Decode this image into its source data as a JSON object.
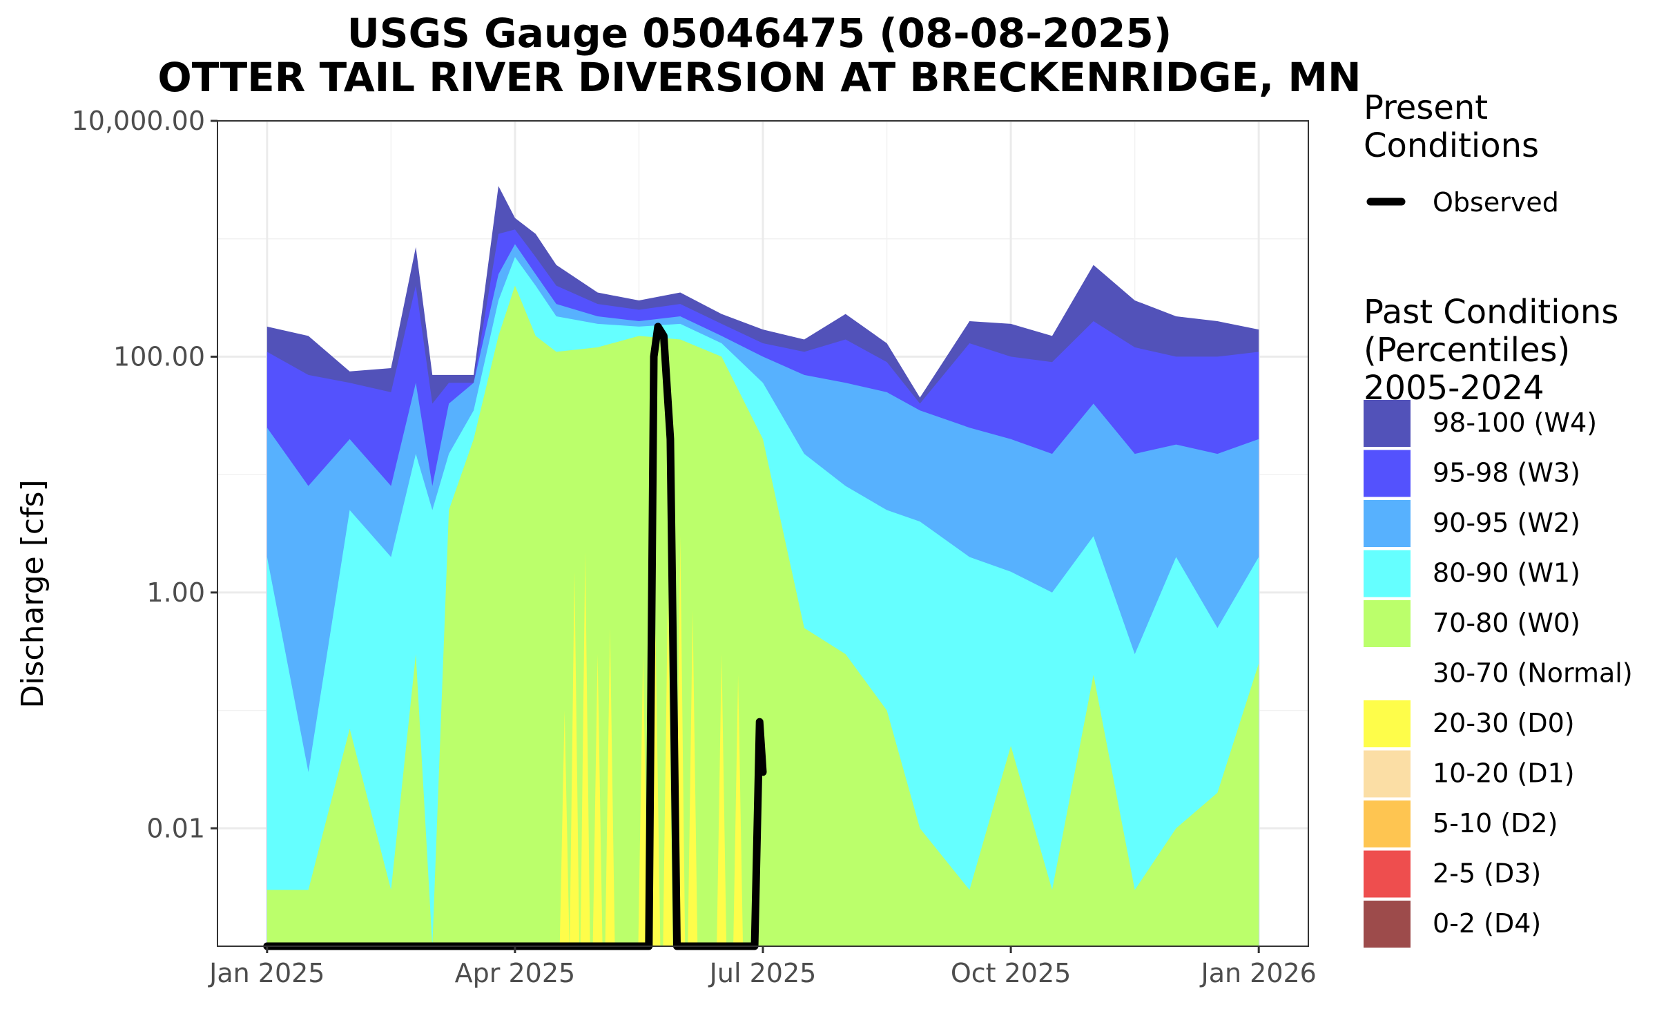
{
  "chart_data": {
    "type": "area",
    "title": "USGS Gauge 05046475 (08-08-2025)",
    "subtitle": "OTTER TAIL RIVER DIVERSION AT BRECKENRIDGE, MN",
    "xlabel": "",
    "ylabel": "Discharge [cfs]",
    "y_scale": "log10",
    "y_floor": 0.001,
    "ylim": [
      0.001,
      10000
    ],
    "y_ticks": [
      {
        "value": 0.01,
        "label": "0.01"
      },
      {
        "value": 1,
        "label": "1.00"
      },
      {
        "value": 100,
        "label": "100.00"
      },
      {
        "value": 10000,
        "label": "10,000.00"
      }
    ],
    "x_ticks": [
      {
        "month": 0,
        "label": "Jan 2025"
      },
      {
        "month": 3,
        "label": "Apr 2025"
      },
      {
        "month": 6,
        "label": "Jul 2025"
      },
      {
        "month": 9,
        "label": "Oct 2025"
      },
      {
        "month": 12,
        "label": "Jan 2026"
      }
    ],
    "x_range_months": [
      -0.6,
      12.6
    ],
    "grid": true,
    "legend_position": "right",
    "percentile_bands": {
      "x_months": [
        0,
        0.5,
        1,
        1.5,
        1.8,
        2,
        2.2,
        2.5,
        2.8,
        3,
        3.25,
        3.5,
        4,
        4.5,
        5,
        5.5,
        6,
        6.5,
        7,
        7.5,
        7.9,
        8.5,
        9,
        9.5,
        10,
        10.5,
        11,
        11.5,
        12
      ],
      "p98_100_top": [
        180,
        150,
        75,
        80,
        850,
        70,
        70,
        70,
        2800,
        1500,
        1100,
        600,
        350,
        300,
        350,
        230,
        170,
        140,
        230,
        130,
        45,
        200,
        190,
        150,
        600,
        300,
        220,
        200,
        170
      ],
      "p95_98_top": [
        110,
        70,
        60,
        50,
        400,
        40,
        60,
        60,
        1100,
        1200,
        700,
        400,
        280,
        250,
        280,
        190,
        130,
        110,
        140,
        90,
        40,
        130,
        100,
        90,
        200,
        120,
        100,
        100,
        110
      ],
      "p90_95_top": [
        25,
        8,
        20,
        8,
        60,
        8,
        40,
        60,
        500,
        900,
        500,
        280,
        220,
        200,
        220,
        150,
        100,
        70,
        60,
        50,
        35,
        25,
        20,
        15,
        40,
        15,
        18,
        15,
        20
      ],
      "p80_90_top": [
        2,
        0.03,
        5,
        2,
        15,
        5,
        15,
        35,
        300,
        700,
        400,
        220,
        190,
        180,
        190,
        130,
        60,
        15,
        8,
        5,
        4,
        2,
        1.5,
        1,
        3,
        0.3,
        2,
        0.5,
        2
      ],
      "p70_80_top": [
        0.003,
        0.003,
        0.07,
        0.003,
        0.3,
        0.001,
        5,
        20,
        150,
        400,
        150,
        110,
        120,
        150,
        140,
        100,
        20,
        0.5,
        0.3,
        0.1,
        0.01,
        0.003,
        0.05,
        0.003,
        0.2,
        0.003,
        0.01,
        0.02,
        0.25
      ]
    },
    "d0_bars": {
      "x_months": [
        3.6,
        3.72,
        3.85,
        4.0,
        4.15,
        4.55,
        4.7,
        4.85,
        5.0,
        5.15,
        5.5,
        5.7
      ],
      "values": [
        0.1,
        1.5,
        2.2,
        0.3,
        0.5,
        0.3,
        0.5,
        1,
        3,
        0.7,
        0.3,
        0.2
      ]
    },
    "series": [
      {
        "name": "Observed",
        "color": "#000000",
        "x_months": [
          0,
          4.62,
          4.68,
          4.73,
          4.8,
          4.88,
          4.96,
          5.05,
          5.2,
          5.9,
          5.96,
          6.0
        ],
        "values": [
          0.001,
          0.001,
          100,
          180,
          150,
          20,
          0.001,
          0.001,
          0.001,
          0.001,
          0.08,
          0.03
        ]
      }
    ],
    "legend": {
      "present_title": "Present\nConditions",
      "present_items": [
        {
          "label": "Observed",
          "color": "#000000"
        }
      ],
      "past_title": "Past Conditions\n(Percentiles)\n2005-2024",
      "past_items": [
        {
          "label": "98-100 (W4)",
          "color": "#5252b9"
        },
        {
          "label": "95-98 (W3)",
          "color": "#5452fd"
        },
        {
          "label": "90-95 (W2)",
          "color": "#57b1fe"
        },
        {
          "label": "80-90 (W1)",
          "color": "#65ffff"
        },
        {
          "label": "70-80 (W0)",
          "color": "#bbff6b"
        },
        {
          "label": "30-70 (Normal)",
          "color": "#ffffff"
        },
        {
          "label": "20-30 (D0)",
          "color": "#fefd4a"
        },
        {
          "label": "10-20 (D1)",
          "color": "#fbdea5"
        },
        {
          "label": "5-10 (D2)",
          "color": "#fec551"
        },
        {
          "label": "2-5 (D3)",
          "color": "#ee4e4e"
        },
        {
          "label": "0-2 (D4)",
          "color": "#9d4b4b"
        }
      ]
    }
  }
}
